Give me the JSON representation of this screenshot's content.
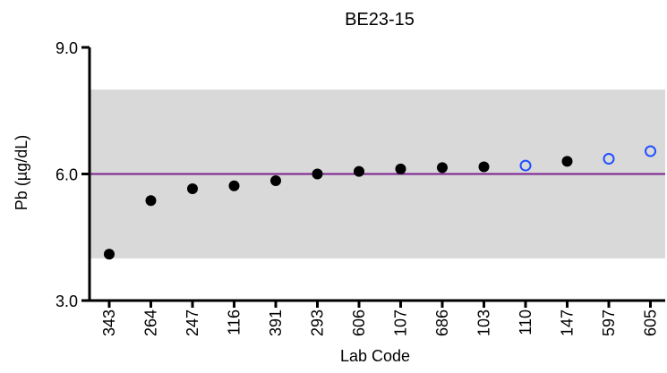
{
  "chart_data": {
    "type": "scatter",
    "title": "BE23-15",
    "xlabel": "Lab Code",
    "ylabel": "Pb (µg/dL)",
    "ylim": [
      3.0,
      9.0
    ],
    "y_ticks": [
      "3.0",
      "6.0",
      "9.0"
    ],
    "y_tick_values": [
      3.0,
      6.0,
      9.0
    ],
    "grid": false,
    "target_value": 6.0,
    "acceptable_range": [
      4.0,
      8.0
    ],
    "categories": [
      "343",
      "264",
      "247",
      "116",
      "391",
      "293",
      "606",
      "107",
      "686",
      "103",
      "110",
      "147",
      "597",
      "605"
    ],
    "values": [
      4.1,
      5.37,
      5.65,
      5.72,
      5.84,
      6.0,
      6.06,
      6.12,
      6.15,
      6.17,
      6.2,
      6.3,
      6.36,
      6.54
    ],
    "marker_styles": [
      "filled",
      "filled",
      "filled",
      "filled",
      "filled",
      "filled",
      "filled",
      "filled",
      "filled",
      "filled",
      "open",
      "filled",
      "open",
      "open"
    ],
    "colors": {
      "filled_marker": "#000000",
      "open_marker": "#1f4fff",
      "target_line": "#7b1f8f",
      "acceptable_band": "#d9d9d9",
      "axis": "#000000"
    }
  }
}
